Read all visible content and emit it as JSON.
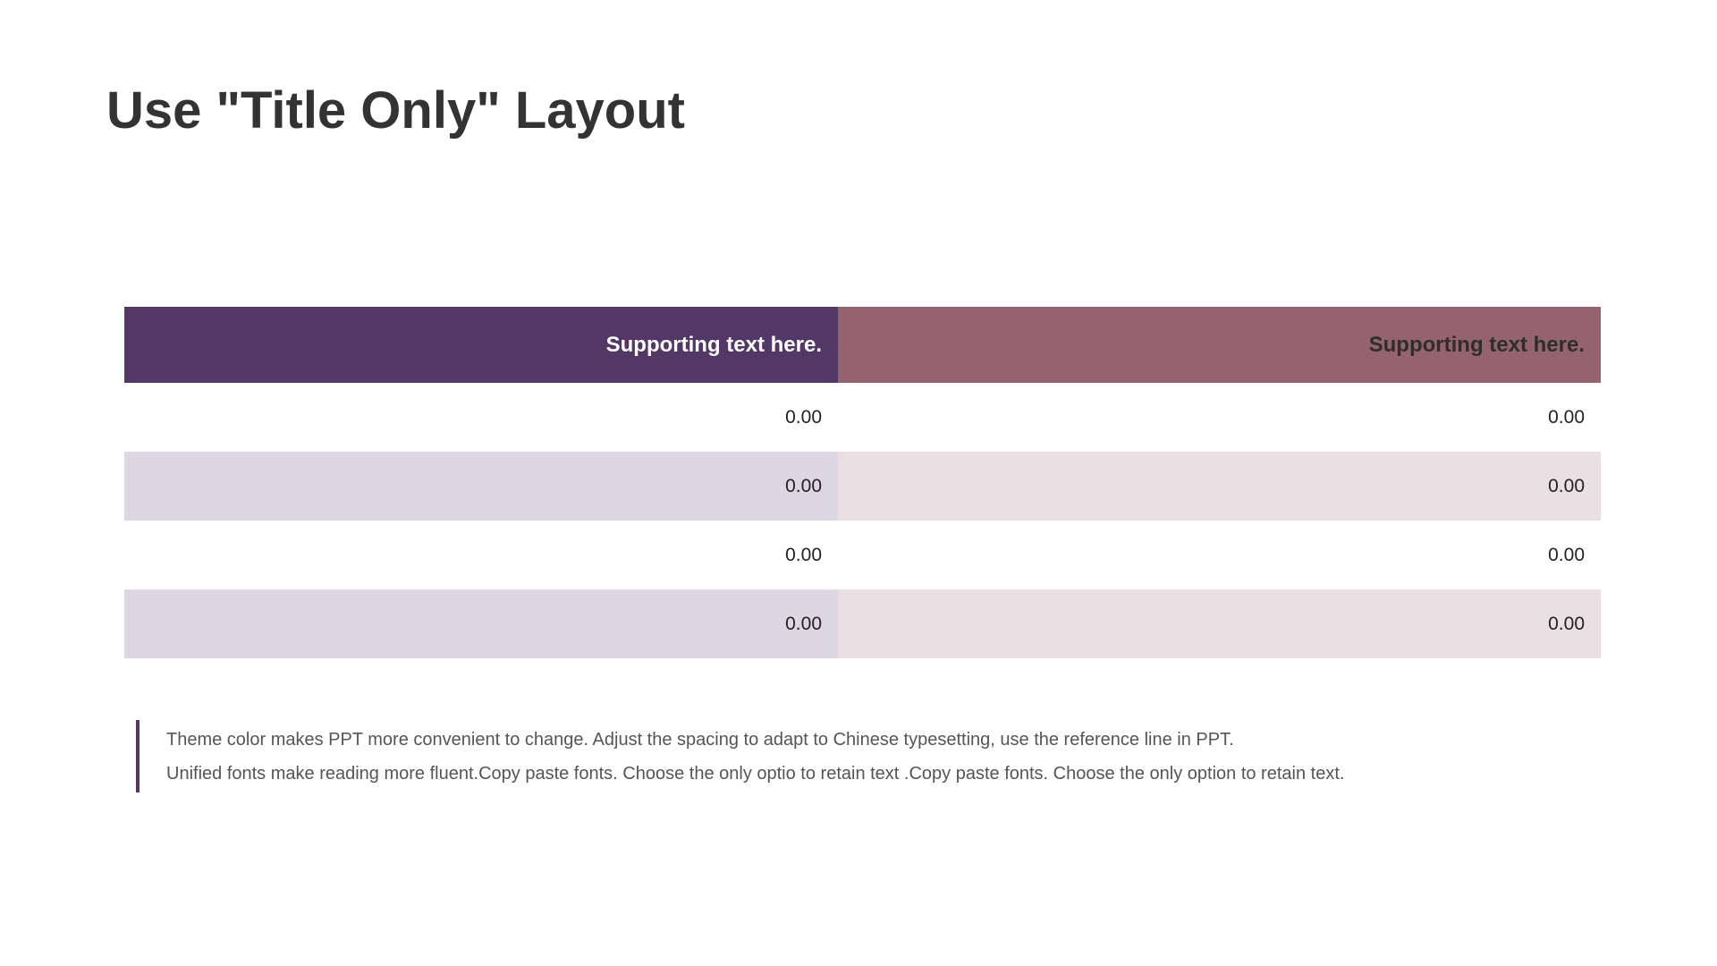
{
  "slide": {
    "title": "Use \"Title Only\" Layout"
  },
  "table": {
    "headers": [
      "Supporting text here.",
      "Supporting text here."
    ],
    "rows": [
      [
        "0.00",
        "0.00"
      ],
      [
        "0.00",
        "0.00"
      ],
      [
        "0.00",
        "0.00"
      ],
      [
        "0.00",
        "0.00"
      ]
    ]
  },
  "note": {
    "lines": [
      "Theme color makes PPT more convenient to change. Adjust the spacing to adapt to Chinese typesetting, use the reference line in PPT.",
      "Unified fonts make reading more fluent.Copy paste fonts. Choose the only optio to retain text .Copy paste  fonts. Choose the only option to retain text."
    ]
  },
  "colors": {
    "header_left": "#523767",
    "header_right": "#94636f",
    "band_left": "#ddd7e3",
    "band_right": "#eadfe2",
    "accent_bar": "#523767"
  }
}
